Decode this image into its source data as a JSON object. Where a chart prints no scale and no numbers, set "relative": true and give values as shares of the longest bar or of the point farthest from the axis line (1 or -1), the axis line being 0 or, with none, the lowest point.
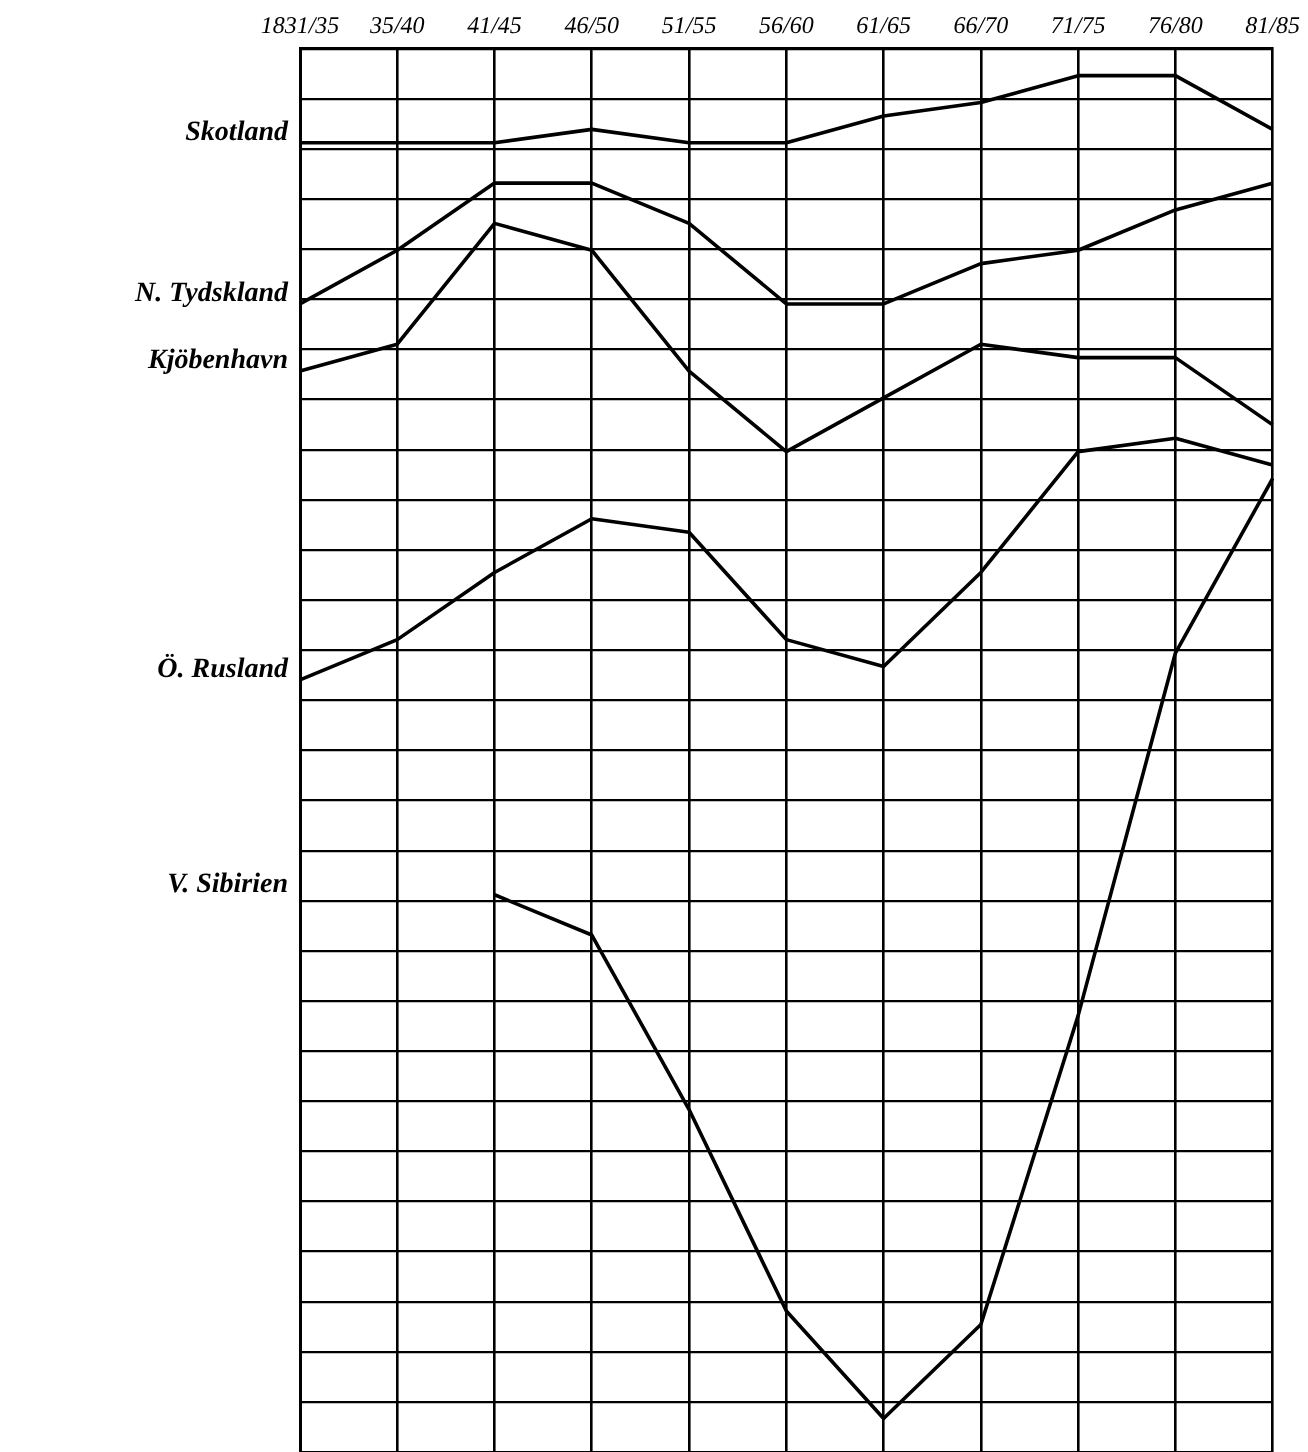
{
  "chart_data": {
    "type": "line",
    "relative": true,
    "categories": [
      "1831/35",
      "35/40",
      "41/45",
      "46/50",
      "51/55",
      "56/60",
      "61/65",
      "66/70",
      "71/75",
      "76/80",
      "81/85"
    ],
    "series": [
      {
        "name": "Skotland",
        "color": "#000000",
        "values": [
          0.95,
          0.95,
          0.95,
          0.96,
          0.95,
          0.95,
          0.97,
          0.98,
          1,
          1,
          0.96
        ]
      },
      {
        "name": "N. Tydskland",
        "color": "#000000",
        "values": [
          0.83,
          0.87,
          0.92,
          0.92,
          0.89,
          0.83,
          0.83,
          0.86,
          0.87,
          0.9,
          0.92
        ]
      },
      {
        "name": "Kjöbenhavn",
        "color": "#000000",
        "values": [
          0.78,
          0.8,
          0.89,
          0.87,
          0.78,
          0.72,
          0.76,
          0.8,
          0.79,
          0.79,
          0.74
        ]
      },
      {
        "name": "Ö. Rusland",
        "color": "#000000",
        "values": [
          0.55,
          0.58,
          0.63,
          0.67,
          0.66,
          0.58,
          0.56,
          0.63,
          0.72,
          0.73,
          0.71
        ]
      },
      {
        "name": "V. Sibirien",
        "color": "#000000",
        "values": [
          null,
          null,
          0.39,
          0.36,
          0.23,
          0.08,
          0,
          0.07,
          0.3,
          0.57,
          0.7
        ]
      }
    ],
    "grid": true,
    "legend": false,
    "marker": "none",
    "line_style": "solid"
  }
}
